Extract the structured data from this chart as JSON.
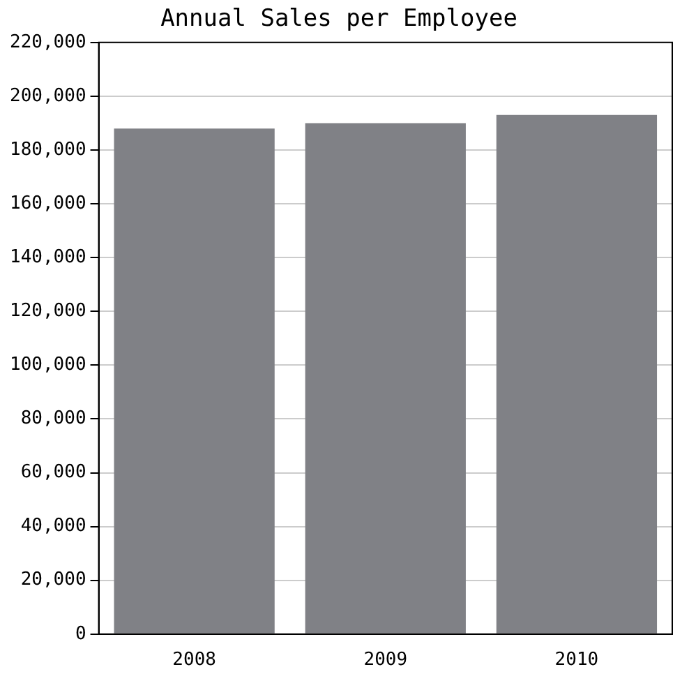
{
  "chart_data": {
    "type": "bar",
    "title": "Annual Sales per Employee",
    "categories": [
      "2008",
      "2009",
      "2010"
    ],
    "values": [
      188000,
      190000,
      193000
    ],
    "color": "#808186",
    "ylim": [
      0,
      220000
    ],
    "yticks": [
      0,
      {
        "value": 20000,
        "label": "20,000"
      },
      {
        "value": 40000,
        "label": "40,000"
      },
      {
        "value": 60000,
        "label": "60,000"
      },
      {
        "value": 80000,
        "label": "80,000"
      },
      {
        "value": 100000,
        "label": "100,000"
      },
      {
        "value": 120000,
        "label": "120,000"
      },
      {
        "value": 140000,
        "label": "140,000"
      },
      {
        "value": 160000,
        "label": "160,000"
      },
      {
        "value": 180000,
        "label": "180,000"
      },
      {
        "value": 200000,
        "label": "200,000"
      },
      {
        "value": 220000,
        "label": "220,000"
      }
    ],
    "grid": "y",
    "legend": false
  }
}
